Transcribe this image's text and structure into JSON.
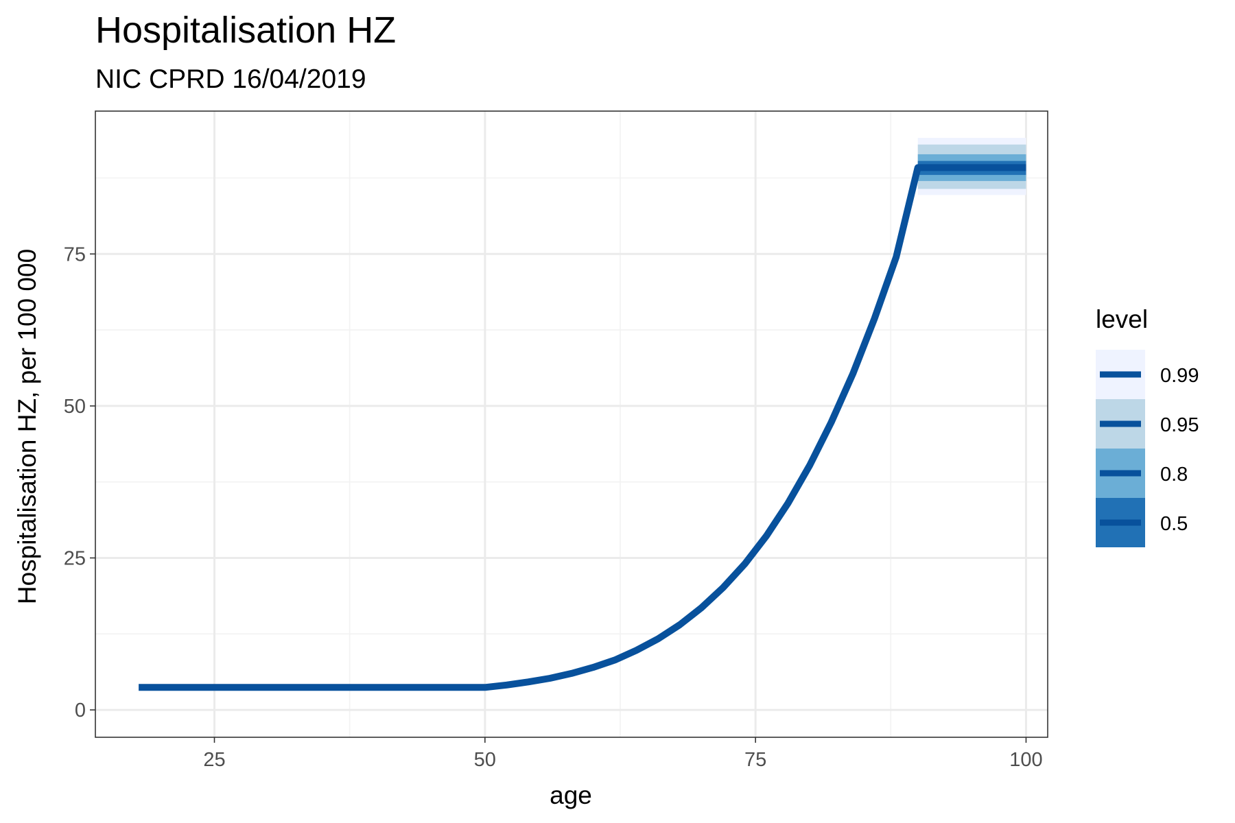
{
  "chart_data": {
    "type": "line",
    "title": "Hospitalisation HZ",
    "subtitle": "NIC CPRD 16/04/2019",
    "xlabel": "age",
    "ylabel": "Hospitalisation HZ, per 100 000",
    "xlim": [
      14,
      102
    ],
    "ylim": [
      -4.5,
      98.5
    ],
    "x_ticks": [
      25,
      50,
      75,
      100
    ],
    "x_tick_labels": [
      "25",
      "50",
      "75",
      "100"
    ],
    "y_ticks": [
      0,
      25,
      50,
      75
    ],
    "y_tick_labels": [
      "0",
      "25",
      "50",
      "75"
    ],
    "grid": true,
    "line_color": "#08519c",
    "series": [
      {
        "x": [
          18,
          25,
          30,
          35,
          40,
          45,
          50,
          52,
          54,
          56,
          58,
          60,
          62,
          64,
          66,
          68,
          70,
          72,
          74,
          76,
          78,
          80,
          82,
          84,
          86,
          88,
          90,
          92,
          94,
          96,
          98,
          100
        ],
        "y": [
          3.7,
          3.7,
          3.7,
          3.7,
          3.7,
          3.7,
          3.7,
          4.1,
          4.6,
          5.2,
          6.0,
          7.0,
          8.2,
          9.8,
          11.7,
          14.0,
          16.8,
          20.1,
          24.0,
          28.6,
          34.0,
          40.2,
          47.3,
          55.3,
          64.4,
          74.5,
          89.2,
          89.2,
          89.2,
          89.2,
          89.2,
          89.2
        ]
      }
    ],
    "bands": [
      {
        "level": "0.99",
        "color": "#eff3ff",
        "plateau_x": [
          90,
          100
        ],
        "plateau_y": [
          84.7,
          94.1
        ]
      },
      {
        "level": "0.95",
        "color": "#bdd7e7",
        "plateau_x": [
          90,
          100
        ],
        "plateau_y": [
          85.7,
          93.0
        ]
      },
      {
        "level": "0.8",
        "color": "#6baed6",
        "plateau_x": [
          90,
          100
        ],
        "plateau_y": [
          87.0,
          91.4
        ]
      },
      {
        "level": "0.5",
        "color": "#2171b5",
        "plateau_x": [
          90,
          100
        ],
        "plateau_y": [
          88.0,
          90.3
        ]
      }
    ],
    "legend": {
      "title": "level",
      "position": "right",
      "items": [
        {
          "label": "0.99",
          "color": "#eff3ff"
        },
        {
          "label": "0.95",
          "color": "#bdd7e7"
        },
        {
          "label": "0.8",
          "color": "#6baed6"
        },
        {
          "label": "0.5",
          "color": "#2171b5"
        }
      ]
    }
  }
}
